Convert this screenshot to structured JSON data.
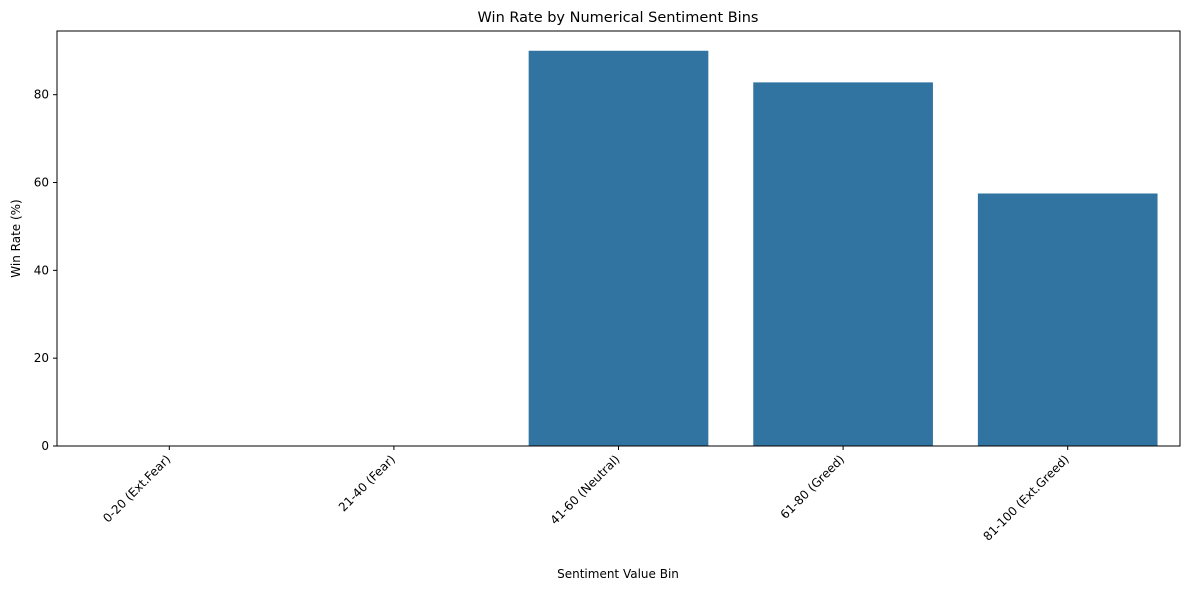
{
  "chart_data": {
    "type": "bar",
    "title": "Win Rate by Numerical Sentiment Bins",
    "xlabel": "Sentiment Value Bin",
    "ylabel": "Win Rate (%)",
    "categories": [
      "0-20 (Ext.Fear)",
      "21-40 (Fear)",
      "41-60 (Neutral)",
      "61-80 (Greed)",
      "81-100 (Ext.Greed)"
    ],
    "values": [
      0,
      0,
      90.0,
      82.8,
      57.5
    ],
    "ylim": [
      0,
      94.5
    ],
    "yticks": [
      0,
      20,
      40,
      60,
      80
    ],
    "grid": false,
    "bar_color": "#3274a1"
  }
}
